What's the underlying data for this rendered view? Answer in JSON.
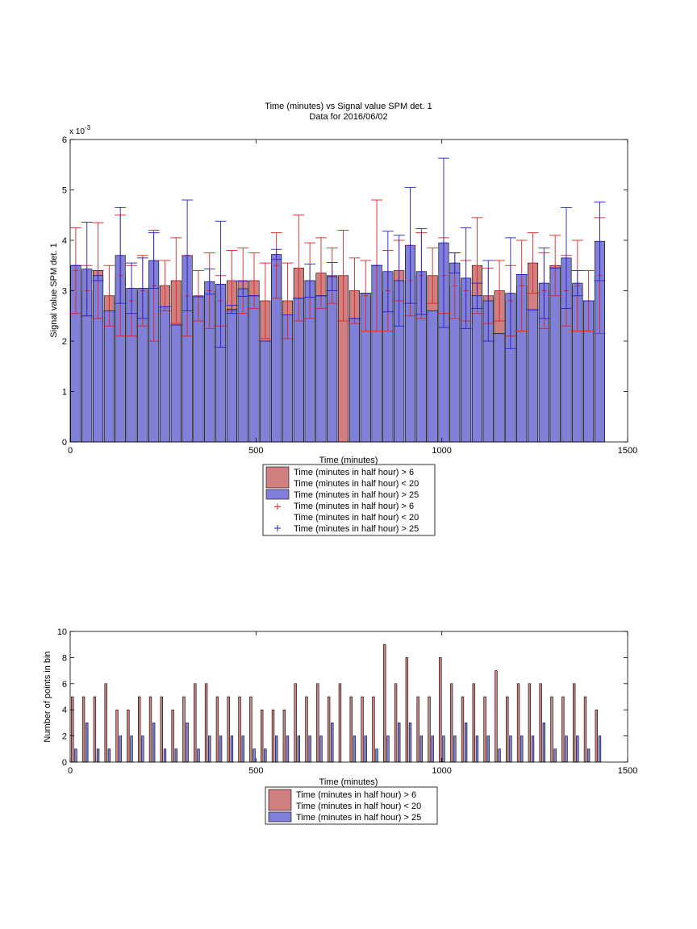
{
  "colors": {
    "red_bar": "#d08080",
    "blue_bar": "#8080d8",
    "red_err": "#dd2222",
    "blue_err": "#2222cc"
  },
  "chart_data": [
    {
      "type": "bar",
      "title": "Time (minutes) vs Signal value SPM det. 1",
      "subtitle": "Data for 2016/06/02",
      "xlabel": "Time (minutes)",
      "ylabel": "Signal value SPM det. 1",
      "y_exponent_label": "x 10",
      "y_exponent_power": "-3",
      "xlim": [
        0,
        1500
      ],
      "ylim": [
        0,
        6
      ],
      "xticks": [
        "0",
        "500",
        "1000",
        "1500"
      ],
      "yticks": [
        "0",
        "1",
        "2",
        "3",
        "4",
        "5",
        "6"
      ],
      "legend_position": "below",
      "legend": [
        {
          "kind": "bar",
          "color": "red",
          "lines": [
            "Time (minutes in half hour) > 6",
            "Time (minutes in half hour) < 20"
          ]
        },
        {
          "kind": "bar",
          "color": "blue",
          "lines": [
            "Time (minutes in half hour) > 25"
          ]
        },
        {
          "kind": "marker",
          "color": "red",
          "lines": [
            "Time (minutes in half hour) > 6",
            "Time (minutes in half hour) < 20"
          ]
        },
        {
          "kind": "marker",
          "color": "blue",
          "lines": [
            "Time (minutes in half hour) > 25"
          ]
        }
      ],
      "x": [
        15,
        45,
        75,
        105,
        135,
        165,
        195,
        225,
        255,
        285,
        315,
        345,
        375,
        405,
        435,
        465,
        495,
        525,
        555,
        585,
        615,
        645,
        675,
        705,
        735,
        765,
        795,
        825,
        855,
        885,
        915,
        945,
        975,
        1005,
        1035,
        1065,
        1095,
        1125,
        1155,
        1185,
        1215,
        1245,
        1275,
        1305,
        1335,
        1365,
        1395,
        1425
      ],
      "series": [
        {
          "name": "Time (minutes in half hour) > 6 Time (minutes in half hour) < 20",
          "values": [
            3.4,
            3.0,
            3.4,
            2.9,
            3.3,
            2.8,
            3.0,
            3.1,
            3.1,
            3.2,
            2.9,
            2.9,
            3.0,
            2.8,
            3.2,
            3.2,
            3.2,
            2.8,
            3.5,
            2.8,
            3.45,
            3.2,
            3.35,
            3.3,
            3.3,
            3.0,
            2.9,
            3.5,
            3.0,
            3.4,
            3.2,
            3.3,
            3.3,
            3.3,
            3.1,
            3.0,
            3.5,
            2.9,
            3.0,
            2.8,
            3.1,
            3.55,
            3.0,
            3.5,
            3.0,
            3.1,
            2.8,
            3.3
          ],
          "err": [
            0.85,
            0.5,
            0.95,
            0.6,
            1.2,
            0.7,
            0.7,
            1.1,
            0.5,
            0.85,
            0.8,
            0.5,
            0.75,
            0.5,
            0.6,
            0.65,
            0.55,
            0.75,
            0.65,
            0.75,
            1.05,
            0.75,
            0.7,
            0.55,
            0.9,
            0.65,
            0.7,
            1.3,
            0.8,
            0.6,
            0.7,
            0.85,
            0.55,
            0.75,
            0.65,
            0.6,
            0.95,
            0.55,
            0.6,
            0.7,
            0.9,
            0.6,
            0.75,
            0.6,
            0.7,
            0.9,
            0.6,
            1.15
          ]
        },
        {
          "name": "Time (minutes in half hour) > 25",
          "values": [
            3.5,
            3.43,
            3.3,
            2.6,
            3.7,
            3.05,
            3.05,
            3.6,
            2.68,
            2.32,
            3.7,
            2.88,
            3.18,
            3.13,
            2.63,
            3.04,
            2.9,
            2.0,
            3.72,
            2.52,
            2.85,
            3.2,
            2.9,
            3.28,
            0,
            2.45,
            2.95,
            3.5,
            3.38,
            3.2,
            3.9,
            3.38,
            2.6,
            3.95,
            3.55,
            3.25,
            2.9,
            2.8,
            2.15,
            2.95,
            3.32,
            2.62,
            3.15,
            3.45,
            3.65,
            3.15,
            2.8,
            3.98
          ],
          "err": [
            0.0,
            0.93,
            0.1,
            0.0,
            0.95,
            0.5,
            0.6,
            0.55,
            0.0,
            0.0,
            1.1,
            0.0,
            0.25,
            1.25,
            0.08,
            0.15,
            0.0,
            0.0,
            0.1,
            0.0,
            0.0,
            0.33,
            0.0,
            0.28,
            0,
            0.0,
            0.0,
            0.0,
            0.8,
            0.9,
            1.15,
            0.85,
            0.0,
            1.68,
            0.2,
            1.0,
            0.25,
            0.8,
            0.0,
            1.1,
            0.0,
            0.0,
            0.7,
            0.0,
            1.0,
            0.25,
            0.0,
            0.78
          ]
        }
      ]
    },
    {
      "type": "bar",
      "title": "",
      "xlabel": "Time (minutes)",
      "ylabel": "Number of points in bin",
      "xlim": [
        0,
        1500
      ],
      "ylim": [
        0,
        10
      ],
      "xticks": [
        "0",
        "500",
        "1000",
        "1500"
      ],
      "yticks": [
        "0",
        "2",
        "4",
        "6",
        "8",
        "10"
      ],
      "legend_position": "below",
      "legend": [
        {
          "kind": "bar",
          "color": "red",
          "lines": [
            "Time (minutes in half hour) > 6",
            "Time (minutes in half hour) < 20"
          ]
        },
        {
          "kind": "bar",
          "color": "blue",
          "lines": [
            "Time (minutes in half hour) > 25"
          ]
        }
      ],
      "x": [
        15,
        45,
        75,
        105,
        135,
        165,
        195,
        225,
        255,
        285,
        315,
        345,
        375,
        405,
        435,
        465,
        495,
        525,
        555,
        585,
        615,
        645,
        675,
        705,
        735,
        765,
        795,
        825,
        855,
        885,
        915,
        945,
        975,
        1005,
        1035,
        1065,
        1095,
        1125,
        1155,
        1185,
        1215,
        1245,
        1275,
        1305,
        1335,
        1365,
        1395,
        1425
      ],
      "series": [
        {
          "name": "Time (minutes in half hour) > 6 Time (minutes in half hour) < 20",
          "values": [
            5,
            5,
            5,
            6,
            4,
            4,
            5,
            5,
            5,
            4,
            5,
            6,
            6,
            5,
            5,
            5,
            5,
            4,
            4,
            4,
            6,
            5,
            6,
            5,
            6,
            5,
            5,
            5,
            9,
            6,
            8,
            5,
            5,
            8,
            6,
            5,
            6,
            5,
            7,
            5,
            6,
            6,
            6,
            5,
            5,
            6,
            5,
            4
          ]
        },
        {
          "name": "Time (minutes in half hour) > 25",
          "values": [
            1,
            3,
            1,
            1,
            2,
            2,
            2,
            3,
            1,
            1,
            3,
            1,
            2,
            2,
            2,
            2,
            1,
            1,
            2,
            2,
            2,
            2,
            2,
            3,
            0,
            2,
            2,
            1,
            2,
            3,
            3,
            2,
            2,
            2,
            2,
            3,
            2,
            2,
            1,
            2,
            2,
            2,
            3,
            1,
            2,
            2,
            1,
            2
          ]
        }
      ]
    }
  ]
}
